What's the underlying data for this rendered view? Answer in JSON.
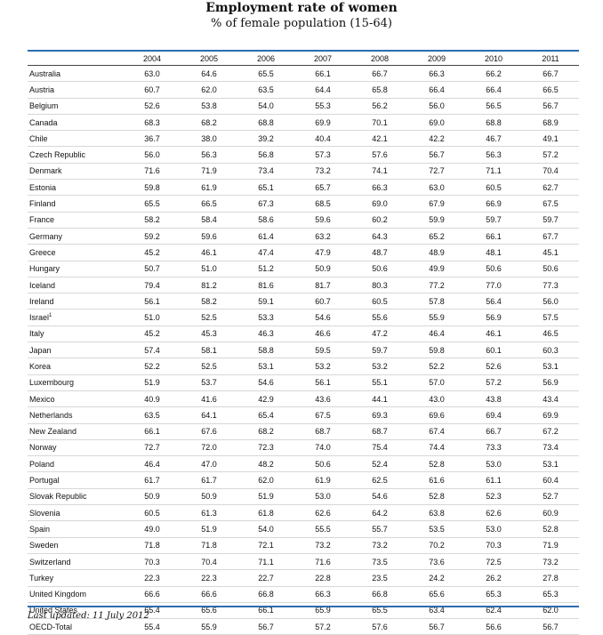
{
  "title": "Employment rate of women",
  "subtitle": "% of female population (15-64)",
  "footer": "Last updated: 11 July 2012",
  "columns": [
    "2004",
    "2005",
    "2006",
    "2007",
    "2008",
    "2009",
    "2010",
    "2011"
  ],
  "rows": [
    {
      "country": "Australia",
      "values": [
        "63.0",
        "64.6",
        "65.5",
        "66.1",
        "66.7",
        "66.3",
        "66.2",
        "66.7"
      ]
    },
    {
      "country": "Austria",
      "values": [
        "60.7",
        "62.0",
        "63.5",
        "64.4",
        "65.8",
        "66.4",
        "66.4",
        "66.5"
      ]
    },
    {
      "country": "Belgium",
      "values": [
        "52.6",
        "53.8",
        "54.0",
        "55.3",
        "56.2",
        "56.0",
        "56.5",
        "56.7"
      ]
    },
    {
      "country": "Canada",
      "values": [
        "68.3",
        "68.2",
        "68.8",
        "69.9",
        "70.1",
        "69.0",
        "68.8",
        "68.9"
      ]
    },
    {
      "country": "Chile",
      "values": [
        "36.7",
        "38.0",
        "39.2",
        "40.4",
        "42.1",
        "42.2",
        "46.7",
        "49.1"
      ]
    },
    {
      "country": "Czech Republic",
      "values": [
        "56.0",
        "56.3",
        "56.8",
        "57.3",
        "57.6",
        "56.7",
        "56.3",
        "57.2"
      ]
    },
    {
      "country": "Denmark",
      "values": [
        "71.6",
        "71.9",
        "73.4",
        "73.2",
        "74.1",
        "72.7",
        "71.1",
        "70.4"
      ]
    },
    {
      "country": "Estonia",
      "values": [
        "59.8",
        "61.9",
        "65.1",
        "65.7",
        "66.3",
        "63.0",
        "60.5",
        "62.7"
      ]
    },
    {
      "country": "Finland",
      "values": [
        "65.5",
        "66.5",
        "67.3",
        "68.5",
        "69.0",
        "67.9",
        "66.9",
        "67.5"
      ]
    },
    {
      "country": "France",
      "values": [
        "58.2",
        "58.4",
        "58.6",
        "59.6",
        "60.2",
        "59.9",
        "59.7",
        "59.7"
      ]
    },
    {
      "country": "Germany",
      "values": [
        "59.2",
        "59.6",
        "61.4",
        "63.2",
        "64.3",
        "65.2",
        "66.1",
        "67.7"
      ]
    },
    {
      "country": "Greece",
      "values": [
        "45.2",
        "46.1",
        "47.4",
        "47.9",
        "48.7",
        "48.9",
        "48.1",
        "45.1"
      ]
    },
    {
      "country": "Hungary",
      "values": [
        "50.7",
        "51.0",
        "51.2",
        "50.9",
        "50.6",
        "49.9",
        "50.6",
        "50.6"
      ]
    },
    {
      "country": "Iceland",
      "values": [
        "79.4",
        "81.2",
        "81.6",
        "81.7",
        "80.3",
        "77.2",
        "77.0",
        "77.3"
      ]
    },
    {
      "country": "Ireland",
      "values": [
        "56.1",
        "58.2",
        "59.1",
        "60.7",
        "60.5",
        "57.8",
        "56.4",
        "56.0"
      ]
    },
    {
      "country": "Israel",
      "sup": "1",
      "values": [
        "51.0",
        "52.5",
        "53.3",
        "54.6",
        "55.6",
        "55.9",
        "56.9",
        "57.5"
      ]
    },
    {
      "country": "Italy",
      "values": [
        "45.2",
        "45.3",
        "46.3",
        "46.6",
        "47.2",
        "46.4",
        "46.1",
        "46.5"
      ]
    },
    {
      "country": "Japan",
      "values": [
        "57.4",
        "58.1",
        "58.8",
        "59.5",
        "59.7",
        "59.8",
        "60.1",
        "60.3"
      ]
    },
    {
      "country": "Korea",
      "values": [
        "52.2",
        "52.5",
        "53.1",
        "53.2",
        "53.2",
        "52.2",
        "52.6",
        "53.1"
      ]
    },
    {
      "country": "Luxembourg",
      "values": [
        "51.9",
        "53.7",
        "54.6",
        "56.1",
        "55.1",
        "57.0",
        "57.2",
        "56.9"
      ]
    },
    {
      "country": "Mexico",
      "values": [
        "40.9",
        "41.6",
        "42.9",
        "43.6",
        "44.1",
        "43.0",
        "43.8",
        "43.4"
      ]
    },
    {
      "country": "Netherlands",
      "values": [
        "63.5",
        "64.1",
        "65.4",
        "67.5",
        "69.3",
        "69.6",
        "69.4",
        "69.9"
      ]
    },
    {
      "country": "New Zealand",
      "values": [
        "66.1",
        "67.6",
        "68.2",
        "68.7",
        "68.7",
        "67.4",
        "66.7",
        "67.2"
      ]
    },
    {
      "country": "Norway",
      "values": [
        "72.7",
        "72.0",
        "72.3",
        "74.0",
        "75.4",
        "74.4",
        "73.3",
        "73.4"
      ]
    },
    {
      "country": "Poland",
      "values": [
        "46.4",
        "47.0",
        "48.2",
        "50.6",
        "52.4",
        "52.8",
        "53.0",
        "53.1"
      ]
    },
    {
      "country": "Portugal",
      "values": [
        "61.7",
        "61.7",
        "62.0",
        "61.9",
        "62.5",
        "61.6",
        "61.1",
        "60.4"
      ]
    },
    {
      "country": "Slovak Republic",
      "values": [
        "50.9",
        "50.9",
        "51.9",
        "53.0",
        "54.6",
        "52.8",
        "52.3",
        "52.7"
      ]
    },
    {
      "country": "Slovenia",
      "values": [
        "60.5",
        "61.3",
        "61.8",
        "62.6",
        "64.2",
        "63.8",
        "62.6",
        "60.9"
      ]
    },
    {
      "country": "Spain",
      "values": [
        "49.0",
        "51.9",
        "54.0",
        "55.5",
        "55.7",
        "53.5",
        "53.0",
        "52.8"
      ]
    },
    {
      "country": "Sweden",
      "values": [
        "71.8",
        "71.8",
        "72.1",
        "73.2",
        "73.2",
        "70.2",
        "70.3",
        "71.9"
      ]
    },
    {
      "country": "Switzerland",
      "values": [
        "70.3",
        "70.4",
        "71.1",
        "71.6",
        "73.5",
        "73.6",
        "72.5",
        "73.2"
      ]
    },
    {
      "country": "Turkey",
      "values": [
        "22.3",
        "22.3",
        "22.7",
        "22.8",
        "23.5",
        "24.2",
        "26.2",
        "27.8"
      ]
    },
    {
      "country": "United Kingdom",
      "values": [
        "66.6",
        "66.6",
        "66.8",
        "66.3",
        "66.8",
        "65.6",
        "65.3",
        "65.3"
      ]
    },
    {
      "country": "United States",
      "values": [
        "65.4",
        "65.6",
        "66.1",
        "65.9",
        "65.5",
        "63.4",
        "62.4",
        "62.0"
      ]
    },
    {
      "country": "OECD-Total",
      "values": [
        "55.4",
        "55.9",
        "56.7",
        "57.2",
        "57.6",
        "56.7",
        "56.6",
        "56.7"
      ]
    }
  ]
}
